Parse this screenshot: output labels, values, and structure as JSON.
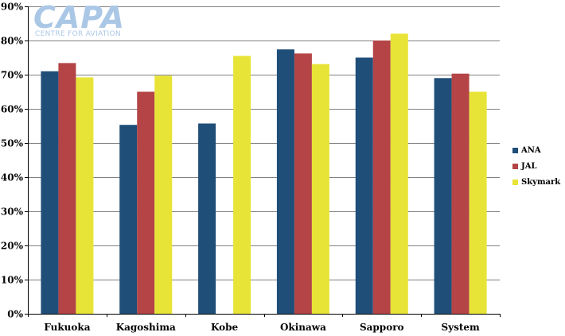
{
  "logo": {
    "main": "CAPA",
    "sub": "CENTRE FOR AVIATION"
  },
  "chart_data": {
    "type": "bar",
    "title": "",
    "xlabel": "",
    "ylabel": "",
    "categories": [
      "Fukuoka",
      "Kagoshima",
      "Kobe",
      "Okinawa",
      "Sapporo",
      "System"
    ],
    "series": [
      {
        "name": "ANA",
        "color": "#1f4e79",
        "values": [
          71,
          55.3,
          55.7,
          77.4,
          75,
          69
        ]
      },
      {
        "name": "JAL",
        "color": "#b44446",
        "values": [
          73.4,
          65,
          null,
          76.2,
          80,
          70.3
        ]
      },
      {
        "name": "Skymark",
        "color": "#e8e437",
        "values": [
          69.2,
          69.7,
          75.5,
          73.1,
          82,
          65
        ]
      }
    ],
    "ylim": [
      0,
      90
    ],
    "yticks": [
      0,
      10,
      20,
      30,
      40,
      50,
      60,
      70,
      80,
      90
    ],
    "ytick_labels": [
      "0%",
      "10%",
      "20%",
      "30%",
      "40%",
      "50%",
      "60%",
      "70%",
      "80%",
      "90%"
    ],
    "grid": true,
    "legend_position": "right"
  }
}
